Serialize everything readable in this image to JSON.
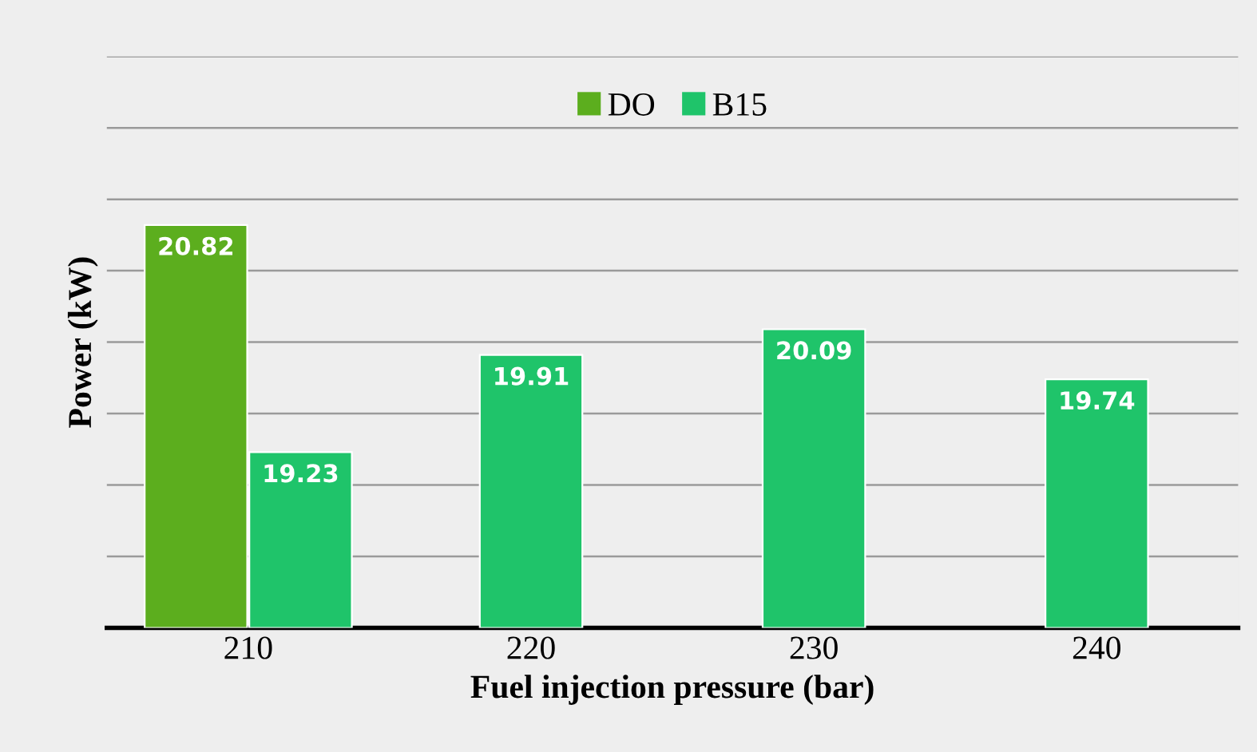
{
  "chart_data": {
    "type": "bar",
    "xlabel": "Fuel injection pressure (bar)",
    "ylabel": "Power (kW)",
    "categories": [
      "210",
      "220",
      "230",
      "240"
    ],
    "series": [
      {
        "name": "DO",
        "color": "#5cae1e",
        "values": [
          20.82,
          null,
          null,
          null
        ]
      },
      {
        "name": "B15",
        "color": "#1fc46a",
        "values": [
          19.23,
          19.91,
          20.09,
          19.74
        ]
      }
    ],
    "ylim": [
      18,
      22
    ],
    "yticks": [
      {
        "value": 18,
        "label": null
      },
      {
        "value": 18.5,
        "label": null
      },
      {
        "value": 19,
        "label": null
      },
      {
        "value": 19.5,
        "label": null
      },
      {
        "value": 20,
        "label": null
      },
      {
        "value": 20.5,
        "label": null
      },
      {
        "value": 21,
        "label": null
      },
      {
        "value": 21.5,
        "label": null
      },
      {
        "value": 22,
        "label": null
      }
    ],
    "tick_labels": "x",
    "grid": "y",
    "legend": "top",
    "data_labels": true
  }
}
